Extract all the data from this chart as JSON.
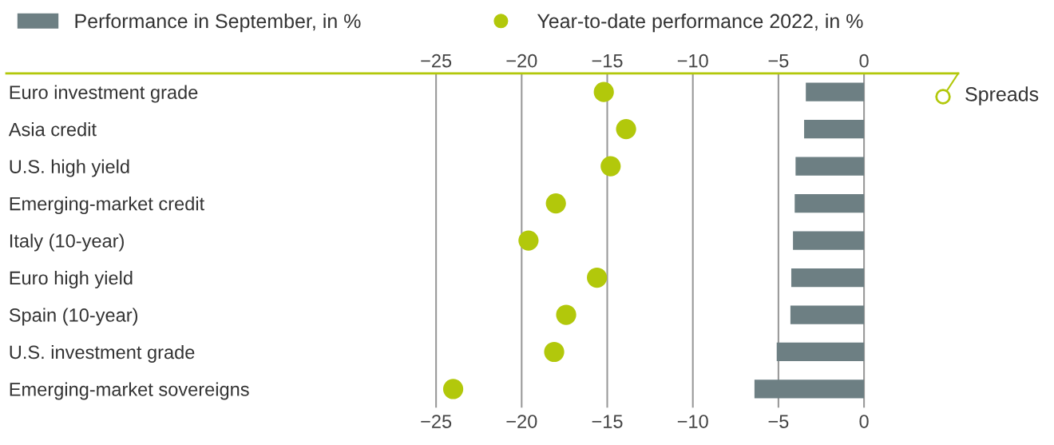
{
  "chart_data": {
    "type": "bar",
    "orientation": "horizontal",
    "categories": [
      "Euro investment grade",
      "Asia credit",
      "U.S. high yield",
      "Emerging-market credit",
      "Italy (10-year)",
      "Euro high yield",
      "Spain (10-year)",
      "U.S. investment grade",
      "Emerging-market sovereigns"
    ],
    "series": [
      {
        "name": "Performance in September, in %",
        "color": "#6d7f83",
        "values": [
          -3.4,
          -3.5,
          -4.0,
          -4.05,
          -4.15,
          -4.25,
          -4.3,
          -5.1,
          -6.4
        ]
      },
      {
        "name": "Year-to-date performance 2022, in %",
        "type": "scatter",
        "color": "#b2c80b",
        "values": [
          -15.2,
          -13.9,
          -14.8,
          -18.0,
          -19.6,
          -15.6,
          -17.4,
          -18.1,
          -24.0
        ]
      }
    ],
    "xlim": [
      -50.1,
      5.5
    ],
    "xticks": [
      {
        "value": -25,
        "label": "−25"
      },
      {
        "value": -20,
        "label": "−20"
      },
      {
        "value": -15,
        "label": "−15"
      },
      {
        "value": -10,
        "label": "−10"
      },
      {
        "value": -5,
        "label": "−5"
      },
      0
    ],
    "x2lim": [
      -50.1,
      5.5
    ],
    "x2ticks": [
      {
        "value": -25,
        "label": "−25"
      },
      {
        "value": -20,
        "label": "−20"
      },
      {
        "value": -15,
        "label": "−15"
      },
      {
        "value": -10,
        "label": "−10"
      },
      {
        "value": -5,
        "label": "−5"
      },
      0
    ],
    "grid": "x",
    "legend": "top left",
    "marker": "circle",
    "annotations": [
      "Spreads"
    ]
  }
}
